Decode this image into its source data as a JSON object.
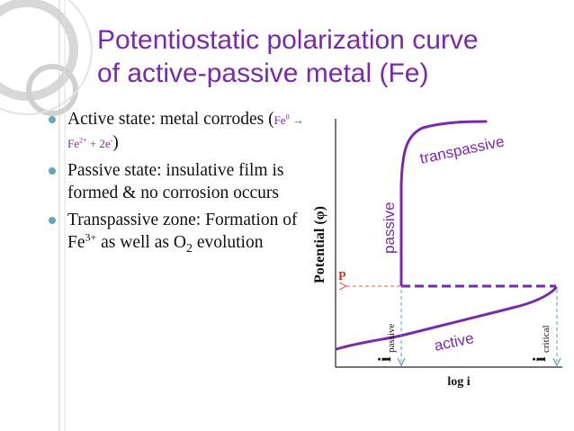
{
  "title": {
    "line1": "Potentiostatic polarization curve",
    "line2": "of active-passive metal (Fe)"
  },
  "bullets": [
    {
      "text_a": "Active state: metal corrodes (",
      "eq_a": "Fe",
      "eq_sup1": "0",
      "eq_arrow": " → Fe",
      "eq_sup2": "2+",
      "eq_b": " + 2e",
      "eq_sup3": "-",
      "text_b": ")"
    },
    {
      "text": "Passive state: insulative film is formed & no corrosion occurs"
    },
    {
      "text_a": "Transpassive zone: Formation of Fe",
      "sup": "3+",
      "text_b": " as well as O",
      "sub": "2",
      "text_c": " evolution"
    }
  ],
  "diagram": {
    "y_axis_label": "Potential (φ)",
    "x_axis_label": "log i",
    "point_label": "P",
    "region_active": "active",
    "region_passive": "passive",
    "region_transpassive": "transpassive",
    "i_passive_main": "i",
    "i_passive_sub": "passive",
    "i_critical_main": "i",
    "i_critical_sub": "critical"
  },
  "colors": {
    "title": "#7a2aa8",
    "curve": "#7a2aa8",
    "point_label": "#c0392b",
    "guide_red": "#e06060",
    "guide_blue": "#5b9bb0",
    "bullet": "#6aa6b4",
    "decor": "#c8c8c8"
  }
}
